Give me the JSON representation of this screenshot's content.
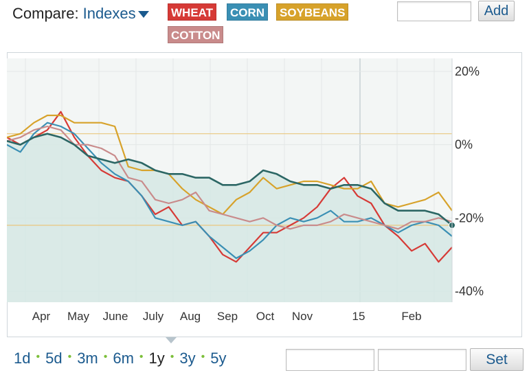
{
  "compare": {
    "label": "Compare:",
    "selector": "Indexes"
  },
  "tags": [
    {
      "key": "wheat",
      "label": "WHEAT",
      "color": "#d63a36"
    },
    {
      "key": "corn",
      "label": "CORN",
      "color": "#3a8fb4"
    },
    {
      "key": "soybeans",
      "label": "SOYBEANS",
      "color": "#d7a22a"
    },
    {
      "key": "cotton",
      "label": "COTTON",
      "color": "#c98b8b"
    }
  ],
  "add_button": "Add",
  "ranges": [
    "1d",
    "5d",
    "3m",
    "6m",
    "1y",
    "3y",
    "5y"
  ],
  "active_range": "1y",
  "set_button": "Set",
  "chart_data": {
    "type": "line",
    "ylim": [
      -40,
      20
    ],
    "yticks": [
      20,
      0,
      -20,
      -40
    ],
    "ytick_labels": [
      "20%",
      "0%",
      "-20%",
      "-40%"
    ],
    "xtick_labels": [
      "Apr",
      "May",
      "June",
      "July",
      "Aug",
      "Sep",
      "Oct",
      "Nov",
      "15",
      "Feb"
    ],
    "grid": true,
    "reference_lines": [
      3,
      -22
    ],
    "series": [
      {
        "name": "WHEAT",
        "color": "#d63a36",
        "values": [
          2,
          0,
          2,
          4,
          9,
          2,
          -3,
          -7,
          -9,
          -10,
          -14,
          -19,
          -17,
          -22,
          -21,
          -25,
          -30,
          -32,
          -28,
          -24,
          -24,
          -22,
          -20,
          -17,
          -12,
          -9,
          -14,
          -16,
          -22,
          -25,
          -29,
          -27,
          -32,
          -28
        ]
      },
      {
        "name": "CORN",
        "color": "#3a8fb4",
        "values": [
          0,
          -2,
          3,
          6,
          5,
          3,
          -1,
          -5,
          -8,
          -10,
          -14,
          -20,
          -21,
          -22,
          -21,
          -25,
          -28,
          -31,
          -29,
          -26,
          -22,
          -20,
          -21,
          -20,
          -18,
          -21,
          -21,
          -20,
          -22,
          -24,
          -22,
          -21,
          -22,
          -25
        ]
      },
      {
        "name": "SOYBEANS",
        "color": "#d7a22a",
        "values": [
          2,
          3,
          6,
          8,
          8,
          6,
          6,
          6,
          5,
          -6,
          -7,
          -7,
          -8,
          -12,
          -15,
          -17,
          -19,
          -15,
          -13,
          -9,
          -12,
          -11,
          -10,
          -10,
          -11,
          -12,
          -12,
          -10,
          -16,
          -17,
          -16,
          -15,
          -13,
          -18
        ]
      },
      {
        "name": "COTTON",
        "color": "#c98b8b",
        "values": [
          1,
          2,
          4,
          5,
          4,
          0,
          0,
          -1,
          -3,
          -9,
          -10,
          -15,
          -16,
          -15,
          -13,
          -18,
          -19,
          -20,
          -21,
          -20,
          -22,
          -23,
          -22,
          -22,
          -21,
          -19,
          -20,
          -21,
          -22,
          -23,
          -21,
          -21,
          -20,
          -21
        ]
      },
      {
        "name": "",
        "color": "#2b6664",
        "values": [
          1,
          0,
          2,
          3,
          2,
          0,
          -3,
          -4,
          -5,
          -4,
          -5,
          -7,
          -8,
          -8,
          -9,
          -9,
          -11,
          -11,
          -10,
          -7,
          -8,
          -10,
          -11,
          -11,
          -12,
          -11,
          -11,
          -12,
          -16,
          -18,
          -18,
          -18,
          -19,
          -22
        ]
      }
    ]
  }
}
